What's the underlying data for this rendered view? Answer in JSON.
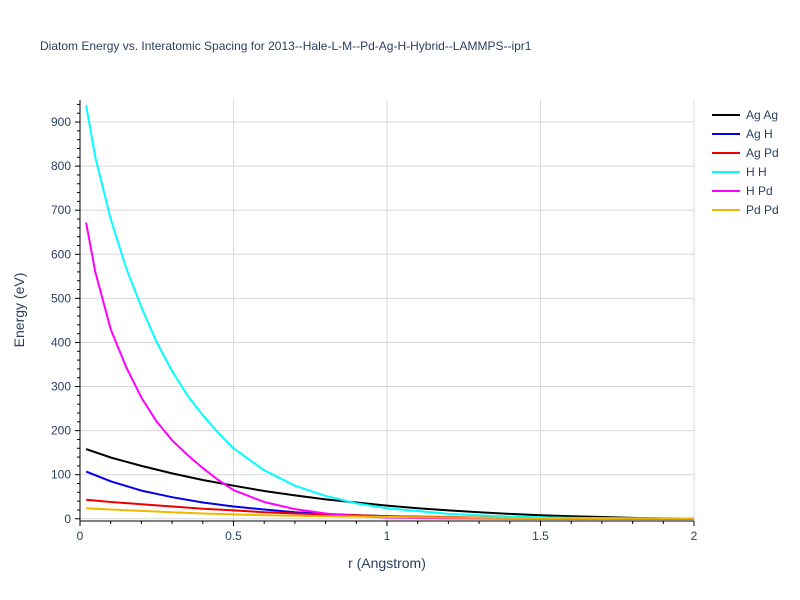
{
  "chart_data": {
    "type": "line",
    "title": "Diatom Energy vs. Interatomic Spacing for 2013--Hale-L-M--Pd-Ag-H-Hybrid--LAMMPS--ipr1",
    "xlabel": "r (Angstrom)",
    "ylabel": "Energy (eV)",
    "xlim": [
      0,
      2
    ],
    "ylim": [
      -5,
      950
    ],
    "x_ticks": [
      0,
      0.5,
      1,
      1.5,
      2
    ],
    "x_tick_labels": [
      "0",
      "0.5",
      "1",
      "1.5",
      "2"
    ],
    "y_ticks": [
      0,
      100,
      200,
      300,
      400,
      500,
      600,
      700,
      800,
      900
    ],
    "y_tick_labels": [
      "0",
      "100",
      "200",
      "300",
      "400",
      "500",
      "600",
      "700",
      "800",
      "900"
    ],
    "grid": true,
    "legend_position": "top-right",
    "series": [
      {
        "name": "Ag Ag",
        "color": "#000000",
        "x": [
          0.02,
          0.1,
          0.2,
          0.3,
          0.4,
          0.5,
          0.6,
          0.7,
          0.8,
          0.9,
          1.0,
          1.1,
          1.2,
          1.3,
          1.4,
          1.5,
          1.6,
          1.7,
          1.8,
          1.9,
          2.0
        ],
        "y": [
          158,
          139,
          120,
          103,
          88,
          75,
          63,
          53,
          44,
          37,
          30,
          24,
          19,
          15,
          11,
          8,
          6,
          4,
          2,
          1,
          0.5
        ]
      },
      {
        "name": "Ag H",
        "color": "#0000ee",
        "x": [
          0.02,
          0.1,
          0.2,
          0.3,
          0.4,
          0.5,
          0.6,
          0.7,
          0.8,
          0.9,
          1.0,
          1.2,
          1.4,
          1.6,
          1.8,
          2.0
        ],
        "y": [
          107,
          85,
          64,
          49,
          37,
          28,
          21,
          15,
          11,
          8,
          6,
          3,
          2,
          1,
          0.5,
          0.2
        ]
      },
      {
        "name": "Ag Pd",
        "color": "#ee0000",
        "x": [
          0.02,
          0.1,
          0.2,
          0.3,
          0.4,
          0.5,
          0.6,
          0.7,
          0.8,
          0.9,
          1.0,
          1.2,
          1.4,
          1.6,
          1.8,
          2.0
        ],
        "y": [
          43,
          38,
          33,
          28,
          23,
          19,
          15,
          12,
          10,
          8,
          6,
          4,
          2,
          1,
          0.5,
          0.2
        ]
      },
      {
        "name": "H H",
        "color": "#00ffff",
        "x": [
          0.02,
          0.05,
          0.1,
          0.15,
          0.2,
          0.25,
          0.3,
          0.35,
          0.4,
          0.45,
          0.5,
          0.6,
          0.7,
          0.8,
          0.9,
          1.0,
          1.2,
          1.4,
          1.6,
          1.8,
          2.0
        ],
        "y": [
          938,
          820,
          680,
          570,
          480,
          400,
          335,
          280,
          235,
          195,
          160,
          110,
          75,
          52,
          35,
          24,
          11,
          5,
          2,
          1,
          0.5
        ]
      },
      {
        "name": "H Pd",
        "color": "#ff00ff",
        "x": [
          0.02,
          0.05,
          0.1,
          0.15,
          0.2,
          0.25,
          0.3,
          0.35,
          0.4,
          0.45,
          0.5,
          0.6,
          0.7,
          0.8,
          0.9,
          1.0,
          1.2,
          1.4,
          1.6,
          2.0
        ],
        "y": [
          672,
          560,
          430,
          345,
          275,
          220,
          178,
          145,
          115,
          88,
          65,
          38,
          22,
          12,
          6,
          3,
          1,
          0.5,
          0.2,
          0
        ]
      },
      {
        "name": "Pd Pd",
        "color": "#f2b800",
        "x": [
          0.02,
          0.1,
          0.2,
          0.3,
          0.4,
          0.5,
          0.6,
          0.7,
          0.8,
          1.0,
          1.2,
          1.4,
          1.6,
          1.8,
          2.0
        ],
        "y": [
          24,
          21,
          18,
          15,
          12,
          10,
          8,
          7,
          6,
          4,
          3,
          2,
          1.5,
          1,
          0.5
        ]
      }
    ]
  }
}
